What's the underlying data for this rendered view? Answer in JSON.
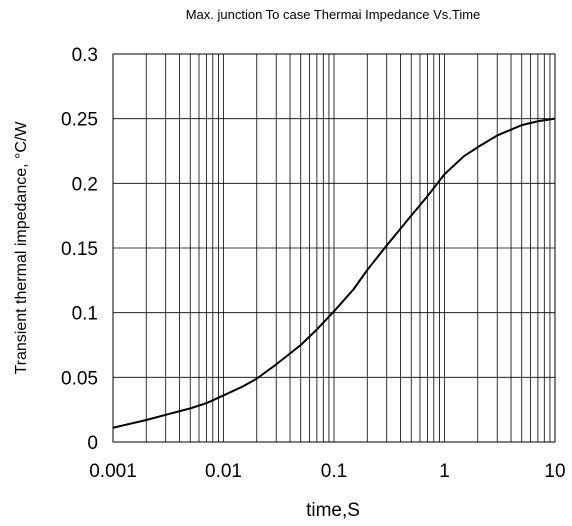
{
  "chart_data": {
    "type": "line",
    "title": "Max. junction To case Thermai Impedance Vs.Time",
    "xlabel": "time,S",
    "ylabel": "Transient thermal impedance, °C/W",
    "xscale": "log",
    "xlim": [
      0.001,
      10
    ],
    "ylim": [
      0,
      0.3
    ],
    "grid": true,
    "x_ticks": [
      {
        "value": 0.001,
        "label": "0.001"
      },
      {
        "value": 0.01,
        "label": "0.01"
      },
      {
        "value": 0.1,
        "label": "0.1"
      },
      {
        "value": 1,
        "label": "1"
      },
      {
        "value": 10,
        "label": "10"
      }
    ],
    "y_ticks": [
      {
        "value": 0,
        "label": "0"
      },
      {
        "value": 0.05,
        "label": "0.05"
      },
      {
        "value": 0.1,
        "label": "0.1"
      },
      {
        "value": 0.15,
        "label": "0.15"
      },
      {
        "value": 0.2,
        "label": "0.2"
      },
      {
        "value": 0.25,
        "label": "0.25"
      },
      {
        "value": 0.3,
        "label": "0.3"
      }
    ],
    "series": [
      {
        "color": "#000000",
        "x": [
          0.001,
          0.002,
          0.003,
          0.005,
          0.007,
          0.01,
          0.015,
          0.02,
          0.03,
          0.05,
          0.07,
          0.1,
          0.15,
          0.2,
          0.3,
          0.5,
          0.7,
          1,
          1.5,
          2,
          3,
          5,
          7,
          10
        ],
        "y": [
          0.011,
          0.017,
          0.021,
          0.026,
          0.03,
          0.036,
          0.043,
          0.049,
          0.06,
          0.075,
          0.087,
          0.101,
          0.118,
          0.133,
          0.152,
          0.175,
          0.19,
          0.207,
          0.221,
          0.228,
          0.237,
          0.245,
          0.248,
          0.25
        ]
      }
    ]
  }
}
